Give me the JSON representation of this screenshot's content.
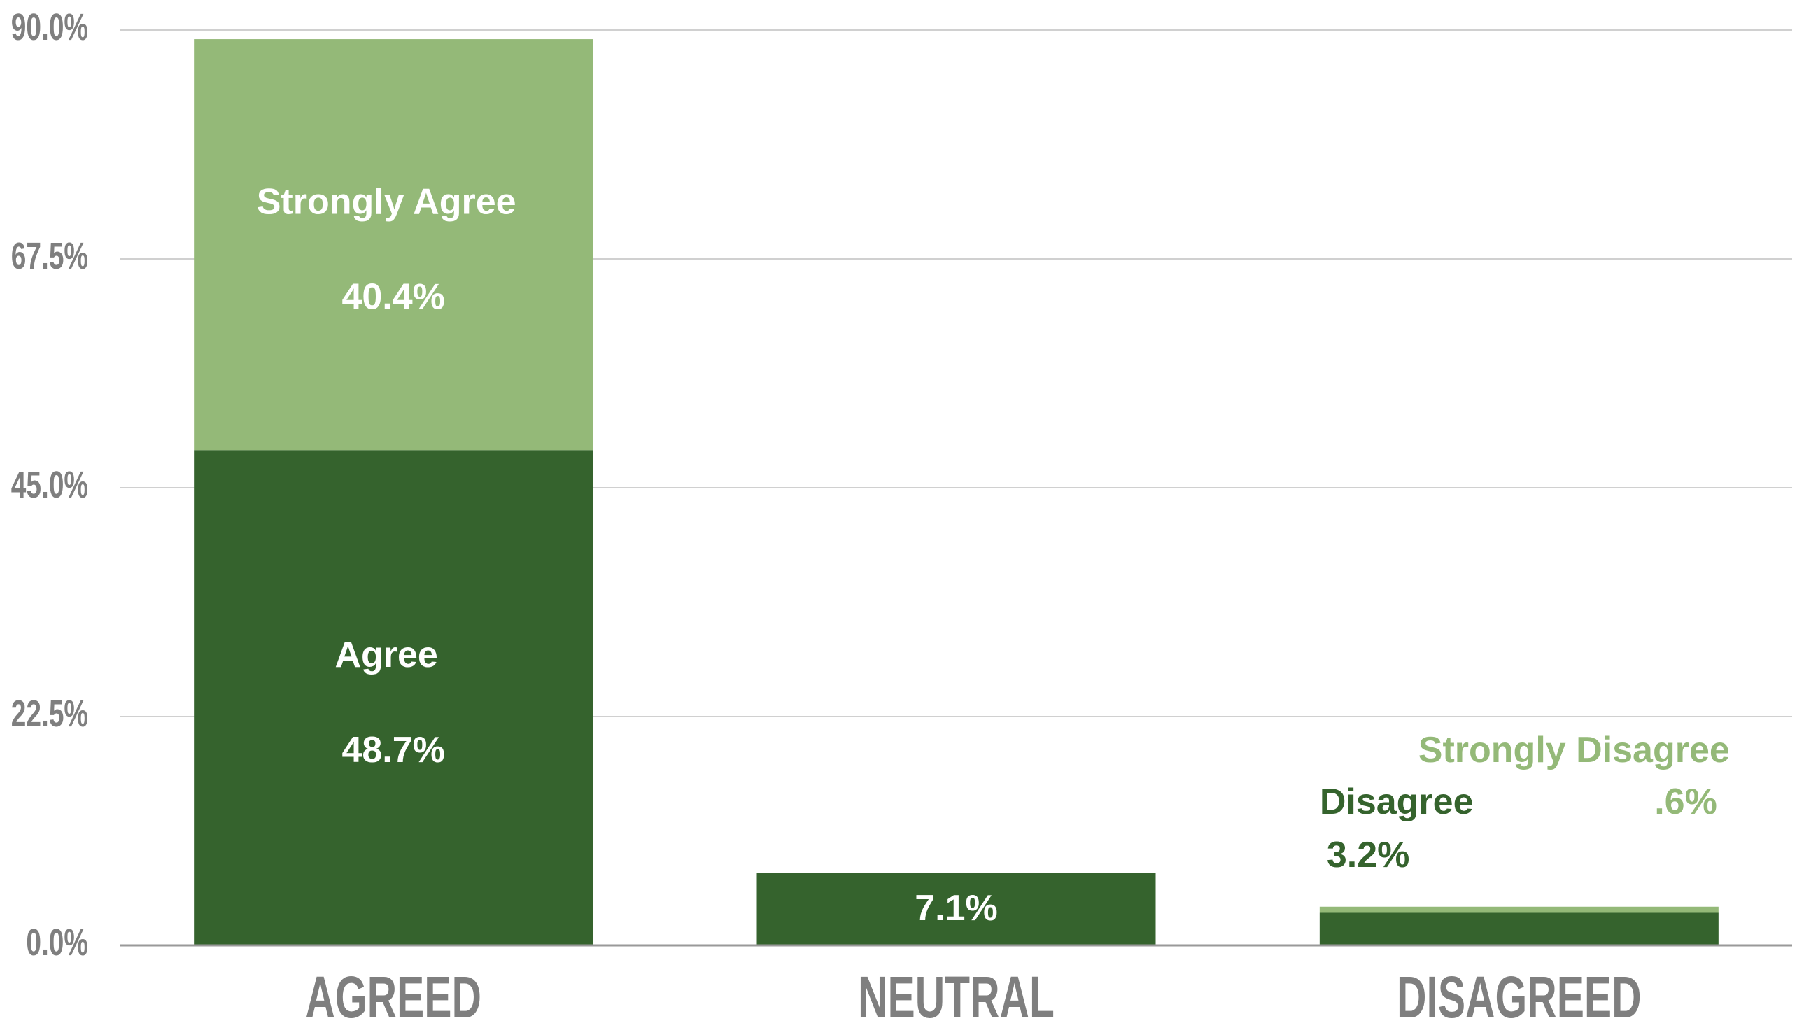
{
  "chart_data": {
    "type": "stacked_bar",
    "categories": [
      "AGREED",
      "NEUTRAL",
      "DISAGREED"
    ],
    "bars": [
      {
        "segments": [
          {
            "name": "Agree",
            "value": 48.7,
            "value_label": "48.7%",
            "color": "#35632d"
          },
          {
            "name": "Strongly Agree",
            "value": 40.4,
            "value_label": "40.4%",
            "color": "#94b978"
          }
        ]
      },
      {
        "segments": [
          {
            "value": 7.1,
            "value_label": "7.1%",
            "color": "#35632d"
          }
        ]
      },
      {
        "segments": [
          {
            "name": "Disagree",
            "value": 3.2,
            "value_label": "3.2%",
            "color": "#35632d"
          },
          {
            "name": "Strongly Disagree",
            "value": 0.6,
            "value_label": ".6%",
            "color": "#94b978"
          }
        ]
      }
    ],
    "ylim": [
      0,
      90
    ],
    "yticks": [
      {
        "value": 0,
        "label": "0.0%"
      },
      {
        "value": 22.5,
        "label": "22.5%"
      },
      {
        "value": 45,
        "label": "45.0%"
      },
      {
        "value": 67.5,
        "label": "67.5%"
      },
      {
        "value": 90,
        "label": "90.0%"
      }
    ],
    "grid": true
  }
}
